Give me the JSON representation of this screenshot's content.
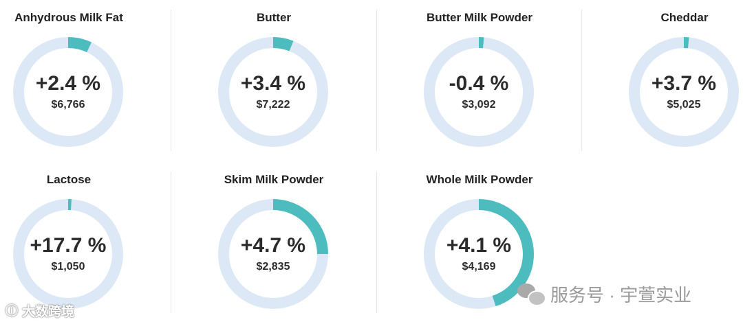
{
  "chart_data": {
    "type": "donut",
    "track_color": "#dce8f6",
    "fill_color": "#4dbcbf",
    "items": [
      {
        "name": "Anhydrous Milk Fat",
        "change_label": "+2.4 %",
        "change": 2.4,
        "price_label": "$6,766",
        "price": 6766,
        "fill_fraction": 0.07
      },
      {
        "name": "Butter",
        "change_label": "+3.4 %",
        "change": 3.4,
        "price_label": "$7,222",
        "price": 7222,
        "fill_fraction": 0.06
      },
      {
        "name": "Butter Milk Powder",
        "change_label": "-0.4 %",
        "change": -0.4,
        "price_label": "$3,092",
        "price": 3092,
        "fill_fraction": 0.015
      },
      {
        "name": "Cheddar",
        "change_label": "+3.7 %",
        "change": 3.7,
        "price_label": "$5,025",
        "price": 5025,
        "fill_fraction": 0.015
      },
      {
        "name": "Lactose",
        "change_label": "+17.7 %",
        "change": 17.7,
        "price_label": "$1,050",
        "price": 1050,
        "fill_fraction": 0.01
      },
      {
        "name": "Skim Milk Powder",
        "change_label": "+4.7 %",
        "change": 4.7,
        "price_label": "$2,835",
        "price": 2835,
        "fill_fraction": 0.25
      },
      {
        "name": "Whole Milk Powder",
        "change_label": "+4.1 %",
        "change": 4.1,
        "price_label": "$4,169",
        "price": 4169,
        "fill_fraction": 0.45
      }
    ]
  },
  "watermarks": {
    "left_text": "大数跨境",
    "left_icon": "weibo-icon",
    "right_text": "服务号 · 宇萱实业",
    "right_icon": "wechat-icon"
  }
}
